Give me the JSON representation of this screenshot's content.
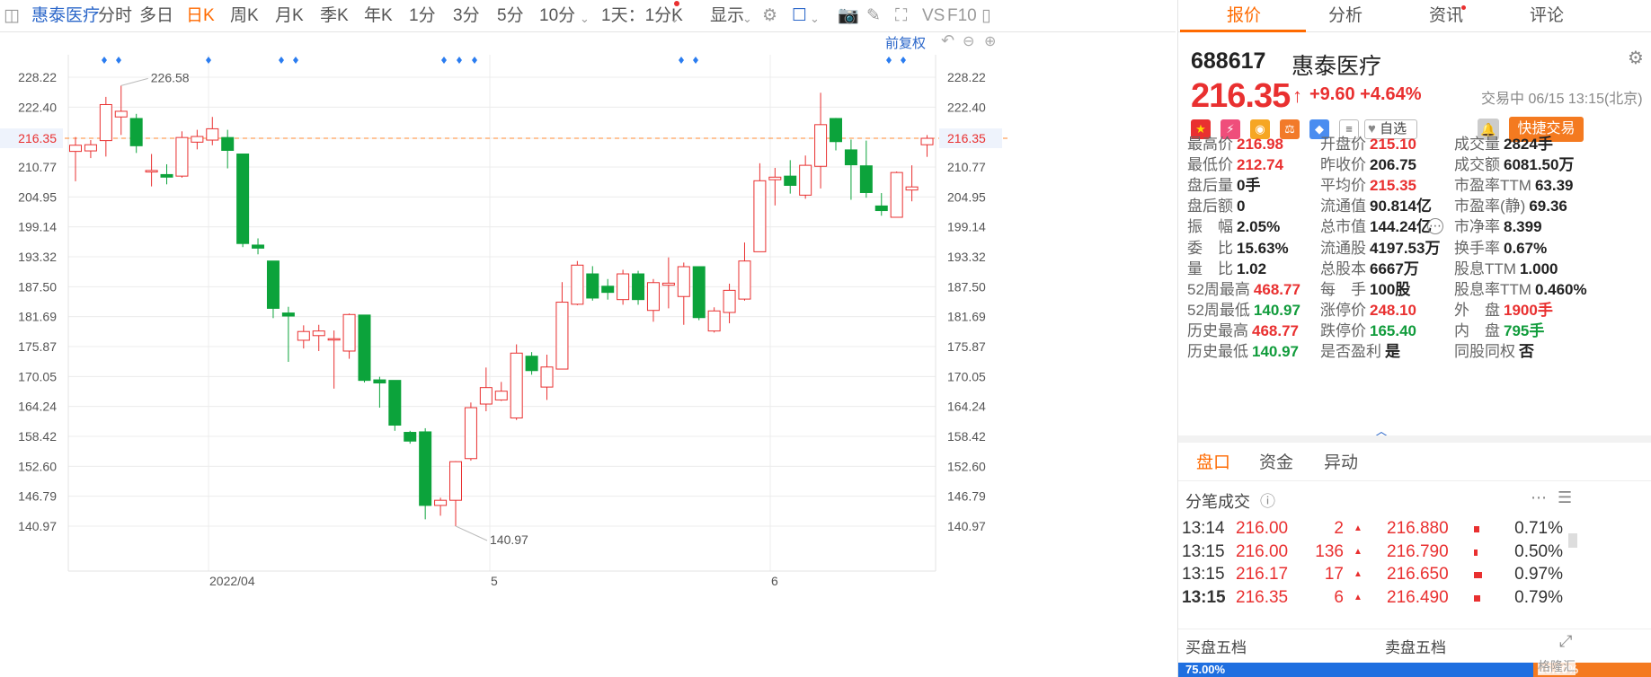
{
  "toolbar": {
    "stock_name": "惠泰医疗",
    "tabs": [
      "分时",
      "多日",
      "日K",
      "周K",
      "月K",
      "季K",
      "年K",
      "1分",
      "3分",
      "5分",
      "10分"
    ],
    "period": "1天：1分K",
    "display": "显示",
    "vs": "VS",
    "f10": "F10"
  },
  "chart": {
    "fq_label": "前复权",
    "price_ticks": [
      "228.22",
      "222.40",
      "216.35",
      "210.77",
      "204.95",
      "199.14",
      "193.32",
      "187.50",
      "181.69",
      "175.87",
      "170.05",
      "164.24",
      "158.42",
      "152.60",
      "146.79",
      "140.97"
    ],
    "ref_price": "216.35",
    "high_label": "226.58",
    "low_label": "140.97",
    "date_labels": [
      "2022/04",
      "5",
      "6"
    ]
  },
  "chart_data": {
    "type": "candlestick",
    "ref_line": 216.35,
    "ylim": [
      140.97,
      228.22
    ],
    "ticks": [
      228.22,
      222.4,
      216.35,
      210.77,
      204.95,
      199.14,
      193.32,
      187.5,
      181.69,
      175.87,
      170.05,
      164.24,
      158.42,
      152.6,
      146.79,
      140.97
    ],
    "x_labels": [
      "2022/04",
      "5",
      "6"
    ],
    "max_annot": 226.58,
    "min_annot": 140.97,
    "candles": [
      {
        "o": 213.8,
        "c": 215.0,
        "h": 216.6,
        "l": 208.0
      },
      {
        "o": 213.9,
        "c": 215.1,
        "h": 216.0,
        "l": 212.5
      },
      {
        "o": 215.9,
        "c": 222.9,
        "h": 224.4,
        "l": 212.8
      },
      {
        "o": 220.5,
        "c": 221.6,
        "h": 226.58,
        "l": 217.0
      },
      {
        "o": 220.2,
        "c": 214.9,
        "h": 221.1,
        "l": 213.5
      },
      {
        "o": 209.8,
        "c": 210.1,
        "h": 213.3,
        "l": 207.0
      },
      {
        "o": 209.3,
        "c": 208.8,
        "h": 211.3,
        "l": 207.4
      },
      {
        "o": 209.0,
        "c": 216.5,
        "h": 217.7,
        "l": 208.7
      },
      {
        "o": 215.6,
        "c": 216.7,
        "h": 218.0,
        "l": 214.2
      },
      {
        "o": 216.0,
        "c": 218.2,
        "h": 220.5,
        "l": 215.0
      },
      {
        "o": 216.5,
        "c": 214.0,
        "h": 218.0,
        "l": 210.5
      },
      {
        "o": 213.3,
        "c": 195.9,
        "h": 213.3,
        "l": 195.2
      },
      {
        "o": 195.6,
        "c": 195.0,
        "h": 196.9,
        "l": 193.8
      },
      {
        "o": 192.5,
        "c": 183.3,
        "h": 192.5,
        "l": 181.4
      },
      {
        "o": 182.4,
        "c": 181.8,
        "h": 183.6,
        "l": 172.9
      },
      {
        "o": 177.1,
        "c": 178.8,
        "h": 180.0,
        "l": 175.5
      },
      {
        "o": 178.0,
        "c": 178.9,
        "h": 180.1,
        "l": 175.0
      },
      {
        "o": 177.2,
        "c": 177.4,
        "h": 179.0,
        "l": 167.7
      },
      {
        "o": 175.0,
        "c": 182.1,
        "h": 182.3,
        "l": 173.5
      },
      {
        "o": 182.0,
        "c": 169.3,
        "h": 182.0,
        "l": 168.9
      },
      {
        "o": 169.4,
        "c": 168.8,
        "h": 170.0,
        "l": 164.0
      },
      {
        "o": 169.3,
        "c": 160.6,
        "h": 169.3,
        "l": 159.5
      },
      {
        "o": 159.2,
        "c": 157.5,
        "h": 159.5,
        "l": 157.0
      },
      {
        "o": 159.3,
        "c": 145.0,
        "h": 160.0,
        "l": 142.3
      },
      {
        "o": 145.0,
        "c": 146.0,
        "h": 146.5,
        "l": 143.0
      },
      {
        "o": 146.0,
        "c": 153.5,
        "h": 153.6,
        "l": 140.97
      },
      {
        "o": 154.1,
        "c": 164.0,
        "h": 165.0,
        "l": 153.7
      },
      {
        "o": 164.7,
        "c": 167.9,
        "h": 171.8,
        "l": 163.3
      },
      {
        "o": 165.5,
        "c": 167.2,
        "h": 169.0,
        "l": 165.3
      },
      {
        "o": 162.0,
        "c": 174.6,
        "h": 176.3,
        "l": 161.6
      },
      {
        "o": 174.0,
        "c": 171.2,
        "h": 174.8,
        "l": 170.4
      },
      {
        "o": 168.0,
        "c": 171.9,
        "h": 174.3,
        "l": 165.5
      },
      {
        "o": 171.5,
        "c": 184.5,
        "h": 188.4,
        "l": 171.5
      },
      {
        "o": 184.1,
        "c": 191.7,
        "h": 192.5,
        "l": 183.9
      },
      {
        "o": 190.0,
        "c": 185.3,
        "h": 191.5,
        "l": 184.8
      },
      {
        "o": 187.6,
        "c": 186.4,
        "h": 189.0,
        "l": 185.0
      },
      {
        "o": 185.0,
        "c": 190.0,
        "h": 190.8,
        "l": 184.0
      },
      {
        "o": 190.0,
        "c": 185.0,
        "h": 190.6,
        "l": 184.0
      },
      {
        "o": 182.9,
        "c": 188.3,
        "h": 189.0,
        "l": 180.7
      },
      {
        "o": 187.8,
        "c": 188.2,
        "h": 193.2,
        "l": 183.3
      },
      {
        "o": 185.6,
        "c": 191.4,
        "h": 192.2,
        "l": 180.1
      },
      {
        "o": 191.4,
        "c": 181.5,
        "h": 191.4,
        "l": 181.0
      },
      {
        "o": 178.9,
        "c": 182.8,
        "h": 183.5,
        "l": 178.6
      },
      {
        "o": 182.5,
        "c": 186.8,
        "h": 188.1,
        "l": 180.4
      },
      {
        "o": 185.1,
        "c": 192.5,
        "h": 196.1,
        "l": 184.8
      },
      {
        "o": 194.3,
        "c": 208.1,
        "h": 211.5,
        "l": 194.3
      },
      {
        "o": 208.3,
        "c": 208.8,
        "h": 210.6,
        "l": 203.3
      },
      {
        "o": 209.0,
        "c": 207.2,
        "h": 212.1,
        "l": 205.6
      },
      {
        "o": 205.3,
        "c": 211.1,
        "h": 213.0,
        "l": 204.6
      },
      {
        "o": 210.9,
        "c": 219.0,
        "h": 225.2,
        "l": 206.6
      },
      {
        "o": 220.2,
        "c": 215.7,
        "h": 220.3,
        "l": 214.0
      },
      {
        "o": 214.1,
        "c": 211.2,
        "h": 216.1,
        "l": 204.4
      },
      {
        "o": 211.0,
        "c": 205.8,
        "h": 215.9,
        "l": 204.8
      },
      {
        "o": 203.2,
        "c": 202.3,
        "h": 205.7,
        "l": 201.3
      },
      {
        "o": 201.0,
        "c": 209.7,
        "h": 209.9,
        "l": 201.0
      },
      {
        "o": 206.3,
        "c": 206.9,
        "h": 211.1,
        "l": 204.1
      },
      {
        "o": 215.1,
        "c": 216.35,
        "h": 216.98,
        "l": 212.74
      }
    ]
  },
  "tabs": [
    "报价",
    "分析",
    "资讯",
    "评论"
  ],
  "stock": {
    "code": "688617",
    "name": "惠泰医疗",
    "price": "216.35",
    "arrow": "↑",
    "change": "+9.60",
    "pct": "+4.64%",
    "trade_time": "交易中 06/15 13:15(北京)",
    "watch": "自选",
    "fast_trade": "快捷交易"
  },
  "fields": [
    [
      {
        "label": "最高价",
        "value": "216.98",
        "cls": "red"
      },
      {
        "label": "开盘价",
        "value": "215.10",
        "cls": "red"
      },
      {
        "label": "成交量",
        "value": "2824手",
        "cls": "blk"
      }
    ],
    [
      {
        "label": "最低价",
        "value": "212.74",
        "cls": "red"
      },
      {
        "label": "昨收价",
        "value": "206.75",
        "cls": "blk"
      },
      {
        "label": "成交额",
        "value": "6081.50万",
        "cls": "blk"
      }
    ],
    [
      {
        "label": "盘后量",
        "value": "0手",
        "cls": "blk"
      },
      {
        "label": "平均价",
        "value": "215.35",
        "cls": "red"
      },
      {
        "label": "市盈率TTM",
        "value": "63.39",
        "cls": "blk"
      }
    ],
    [
      {
        "label": "盘后额",
        "value": "0",
        "cls": "blk"
      },
      {
        "label": "流通值",
        "value": "90.814亿",
        "cls": "blk"
      },
      {
        "label": "市盈率(静)",
        "value": "69.36",
        "cls": "blk"
      }
    ],
    [
      {
        "label": "振　幅",
        "value": "2.05%",
        "cls": "blk"
      },
      {
        "label": "总市值",
        "value": "144.24亿",
        "cls": "blk"
      },
      {
        "label": "市净率",
        "value": "8.399",
        "cls": "blk"
      }
    ],
    [
      {
        "label": "委　比",
        "value": "15.63%",
        "cls": "blk"
      },
      {
        "label": "流通股",
        "value": "4197.53万",
        "cls": "blk"
      },
      {
        "label": "换手率",
        "value": "0.67%",
        "cls": "blk"
      }
    ],
    [
      {
        "label": "量　比",
        "value": "1.02",
        "cls": "blk"
      },
      {
        "label": "总股本",
        "value": "6667万",
        "cls": "blk"
      },
      {
        "label": "股息TTM",
        "value": "1.000",
        "cls": "blk"
      }
    ],
    [
      {
        "label": "52周最高",
        "value": "468.77",
        "cls": "red"
      },
      {
        "label": "每　手",
        "value": "100股",
        "cls": "blk"
      },
      {
        "label": "股息率TTM",
        "value": "0.460%",
        "cls": "blk"
      }
    ],
    [
      {
        "label": "52周最低",
        "value": "140.97",
        "cls": "green"
      },
      {
        "label": "涨停价",
        "value": "248.10",
        "cls": "red"
      },
      {
        "label": "外　盘",
        "value": "1900手",
        "cls": "red"
      }
    ],
    [
      {
        "label": "历史最高",
        "value": "468.77",
        "cls": "red"
      },
      {
        "label": "跌停价",
        "value": "165.40",
        "cls": "green"
      },
      {
        "label": "内　盘",
        "value": "795手",
        "cls": "green"
      }
    ],
    [
      {
        "label": "历史最低",
        "value": "140.97",
        "cls": "green"
      },
      {
        "label": "是否盈利",
        "value": "是",
        "cls": "blk"
      },
      {
        "label": "同股同权",
        "value": "否",
        "cls": "blk"
      }
    ]
  ],
  "subtabs": [
    "盘口",
    "资金",
    "异动"
  ],
  "ticks_title": "分笔成交",
  "tick_rows": [
    {
      "time": "13:14",
      "price": "216.00",
      "vol": "2",
      "p2": "216.880",
      "pct": "0.71%"
    },
    {
      "time": "13:15",
      "price": "216.00",
      "vol": "136",
      "p2": "216.790",
      "pct": "0.50%"
    },
    {
      "time": "13:15",
      "price": "216.17",
      "vol": "17",
      "p2": "216.650",
      "pct": "0.97%"
    },
    {
      "time": "13:15",
      "price": "216.35",
      "vol": "6",
      "p2": "216.490",
      "pct": "0.79%"
    }
  ],
  "buy5": "买盘五档",
  "sell5": "卖盘五档",
  "buy_pct": "75.00%",
  "sell_pct": "25.00%",
  "watermark": "格隆汇"
}
